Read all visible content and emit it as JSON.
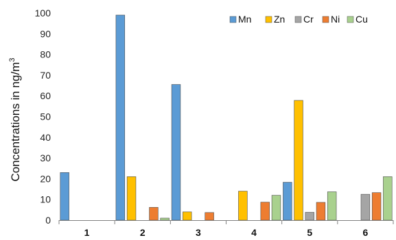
{
  "chart_data": {
    "type": "bar",
    "ylabel": "Concentrations in ng/m",
    "ylabel_superscript": "3",
    "ylim": [
      0,
      100
    ],
    "yticks": [
      "0",
      "10",
      "20",
      "30",
      "40",
      "50",
      "60",
      "70",
      "80",
      "90",
      "100"
    ],
    "categories": [
      "1",
      "2",
      "3",
      "4",
      "5",
      "6"
    ],
    "grid": false,
    "legend_position": "top-right",
    "series": [
      {
        "name": "Mn",
        "color": "#5b9bd5",
        "values": [
          23,
          99,
          65.5,
          0,
          18.3,
          0
        ]
      },
      {
        "name": "Zn",
        "color": "#ffc000",
        "values": [
          0,
          21,
          4,
          14,
          57.8,
          0
        ]
      },
      {
        "name": "Cr",
        "color": "#a5a5a5",
        "values": [
          0,
          0,
          0,
          0,
          3.8,
          12.5
        ]
      },
      {
        "name": "Ni",
        "color": "#ed7d31",
        "values": [
          0,
          6.2,
          3.7,
          8.7,
          8.6,
          13.3
        ]
      },
      {
        "name": "Cu",
        "color": "#a9d18e",
        "values": [
          0,
          1,
          0,
          12,
          13.7,
          21
        ]
      }
    ]
  }
}
